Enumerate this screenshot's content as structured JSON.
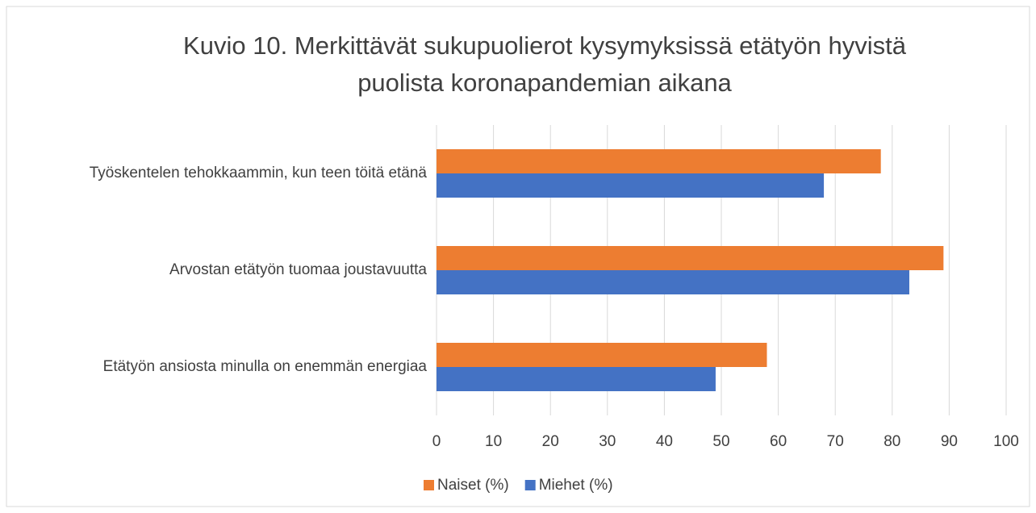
{
  "chart_data": {
    "type": "bar",
    "orientation": "horizontal",
    "title": "Kuvio 10. Merkittävät sukupuolierot kysymyksissä etätyön hyvistä puolista koronapandemian aikana",
    "categories": [
      "Työskentelen tehokkaammin, kun teen töitä etänä",
      "Arvostan etätyön tuomaa joustavuutta",
      "Etätyön ansiosta minulla on enemmän energiaa"
    ],
    "series": [
      {
        "name": "Naiset (%)",
        "color": "#ed7d31",
        "values": [
          78,
          89,
          58
        ]
      },
      {
        "name": "Miehet (%)",
        "color": "#4472c4",
        "values": [
          68,
          83,
          49
        ]
      }
    ],
    "xlim": [
      0,
      100
    ],
    "xticks": [
      0,
      10,
      20,
      30,
      40,
      50,
      60,
      70,
      80,
      90,
      100
    ],
    "grid": true,
    "legend": "bottom"
  }
}
